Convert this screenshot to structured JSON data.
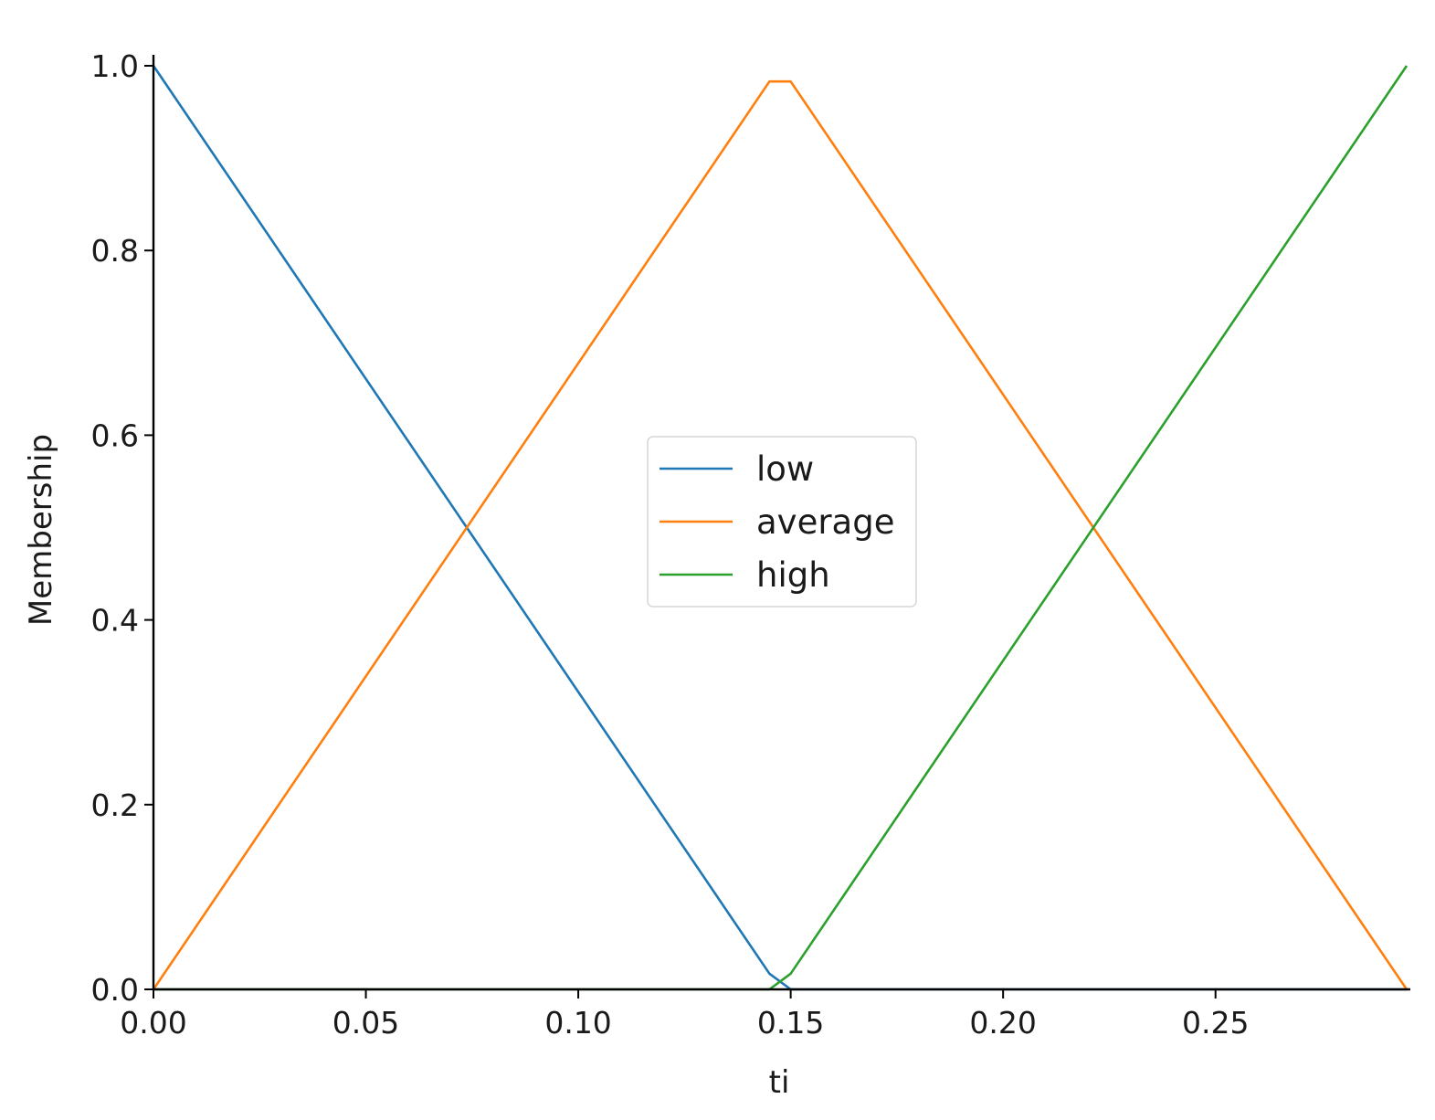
{
  "chart_data": {
    "type": "line",
    "title": "",
    "xlabel": "ti",
    "ylabel": "Membership",
    "xlim": [
      0,
      0.295
    ],
    "ylim": [
      0,
      1.0
    ],
    "xticks": [
      0.0,
      0.05,
      0.1,
      0.15,
      0.2,
      0.25
    ],
    "xtick_labels": [
      "0.00",
      "0.05",
      "0.10",
      "0.15",
      "0.20",
      "0.25"
    ],
    "yticks": [
      0.0,
      0.2,
      0.4,
      0.6,
      0.8,
      1.0
    ],
    "ytick_labels": [
      "0.0",
      "0.2",
      "0.4",
      "0.6",
      "0.8",
      "1.0"
    ],
    "grid": false,
    "legend_position": "center",
    "series": [
      {
        "name": "low",
        "color": "#1f77b4",
        "x": [
          0.0,
          0.145,
          0.15,
          0.295
        ],
        "y": [
          1.0,
          0.017,
          0.0,
          0.0
        ]
      },
      {
        "name": "average",
        "color": "#ff7f0e",
        "x": [
          0.0,
          0.145,
          0.15,
          0.295
        ],
        "y": [
          0.0,
          0.983,
          0.983,
          0.0
        ]
      },
      {
        "name": "high",
        "color": "#2ca02c",
        "x": [
          0.0,
          0.145,
          0.15,
          0.295
        ],
        "y": [
          0.0,
          0.0,
          0.017,
          1.0
        ]
      }
    ]
  }
}
